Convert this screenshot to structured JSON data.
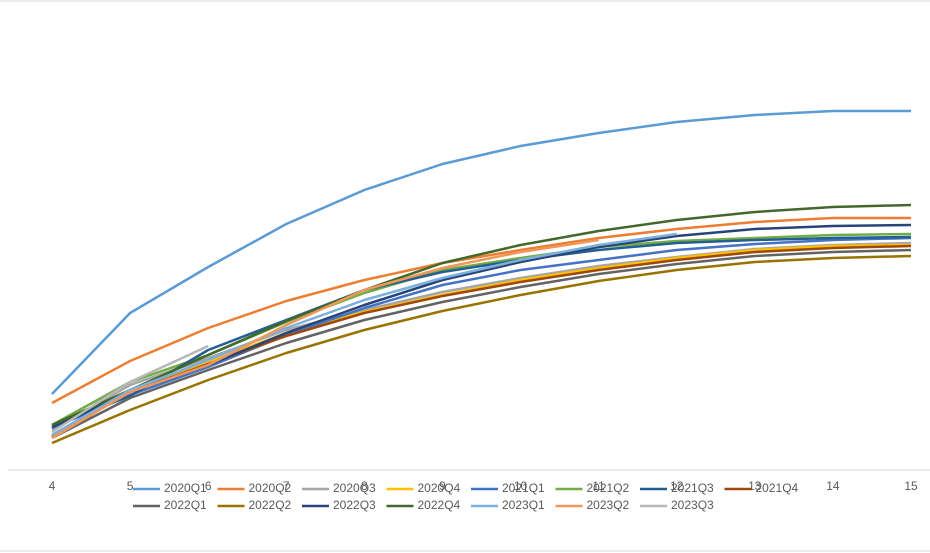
{
  "chart_data": {
    "type": "line",
    "x": [
      4,
      5,
      6,
      7,
      8,
      9,
      10,
      11,
      12,
      13,
      14,
      15
    ],
    "xlim": [
      4,
      15
    ],
    "xticks": [
      4,
      5,
      6,
      7,
      8,
      9,
      10,
      11,
      12,
      13,
      14,
      15
    ],
    "ylim": [
      0,
      460
    ],
    "series": [
      {
        "name": "2020Q1",
        "color": "#5B9BD5",
        "values": [
          76,
          157,
          203,
          246,
          280,
          306,
          324,
          337,
          348,
          355,
          359,
          359
        ]
      },
      {
        "name": "2020Q2",
        "color": "#ED7D31",
        "values": [
          67,
          109,
          142,
          169,
          190,
          207,
          220,
          232,
          241,
          248,
          252,
          252
        ]
      },
      {
        "name": "2020Q3",
        "color": "#A5A5A5",
        "values": [
          40,
          85,
          112,
          140,
          160,
          178,
          192,
          204,
          213,
          221,
          225,
          227
        ]
      },
      {
        "name": "2020Q4",
        "color": "#FFC000",
        "values": [
          34,
          80,
          108,
          137,
          158,
          175,
          190,
          202,
          212,
          220,
          224,
          225
        ]
      },
      {
        "name": "2021Q1",
        "color": "#4472C4",
        "values": [
          42,
          75,
          103,
          135,
          162,
          185,
          200,
          210,
          220,
          226,
          230,
          232
        ]
      },
      {
        "name": "2021Q2",
        "color": "#70AD47",
        "values": [
          45,
          88,
          115,
          148,
          177,
          200,
          212,
          223,
          229,
          232,
          235,
          236
        ]
      },
      {
        "name": "2021Q3",
        "color": "#255E91",
        "values": [
          43,
          74,
          120,
          150,
          180,
          198,
          210,
          220,
          227,
          230,
          232,
          233
        ]
      },
      {
        "name": "2021Q4",
        "color": "#9E480E",
        "values": [
          33,
          78,
          106,
          134,
          157,
          174,
          188,
          200,
          210,
          218,
          222,
          224
        ]
      },
      {
        "name": "2022Q1",
        "color": "#636363",
        "values": [
          32,
          72,
          100,
          127,
          150,
          168,
          183,
          196,
          206,
          214,
          218,
          220
        ]
      },
      {
        "name": "2022Q2",
        "color": "#997300",
        "values": [
          27,
          60,
          90,
          117,
          140,
          159,
          175,
          189,
          200,
          208,
          212,
          214
        ]
      },
      {
        "name": "2022Q3",
        "color": "#264478",
        "values": [
          43,
          78,
          105,
          137,
          165,
          190,
          208,
          223,
          234,
          241,
          244,
          245
        ]
      },
      {
        "name": "2022Q4",
        "color": "#43682B",
        "values": [
          45,
          80,
          115,
          149,
          180,
          207,
          225,
          239,
          250,
          258,
          263,
          265
        ]
      },
      {
        "name": "2023Q1",
        "color": "#7CAFDD",
        "values": [
          35,
          80,
          110,
          142,
          170,
          192,
          210,
          225,
          236,
          null,
          null,
          null
        ]
      },
      {
        "name": "2023Q2",
        "color": "#F1975A",
        "values": [
          32,
          78,
          105,
          145,
          180,
          202,
          218,
          230,
          null,
          null,
          null,
          null
        ]
      },
      {
        "name": "2023Q3",
        "color": "#B7B7B7",
        "values": [
          38,
          88,
          124,
          null,
          null,
          null,
          null,
          null,
          null,
          null,
          null,
          null
        ]
      }
    ]
  }
}
